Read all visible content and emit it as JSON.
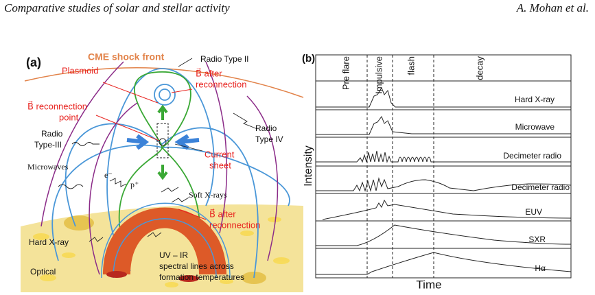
{
  "header": {
    "title": "Comparative studies of solar and stellar activity",
    "authors": "A. Mohan et al."
  },
  "panel_a": {
    "label": "(a)",
    "cme": "CME shock front",
    "radio_type_ii": "Radio Type II",
    "plasmoid": "Plasmoid",
    "b_after_top": [
      "B⃗ after",
      "reconnection"
    ],
    "reconnection_point": [
      "B⃗ reconnection",
      "point"
    ],
    "radio_type_iii": [
      "Radio",
      "Type-III"
    ],
    "radio_type_iv": [
      "Radio",
      "Type IV"
    ],
    "current_sheet": [
      "Current",
      "sheet"
    ],
    "electron": "e⁻",
    "proton": "p⁺",
    "microwaves": "Microwaves",
    "soft_xrays": "Soft X-rays",
    "b_after_bottom": [
      "B⃗ after",
      "reconnection"
    ],
    "hard_xray": "Hard X-ray",
    "optical": "Optical",
    "uv_ir": [
      "UV – IR",
      "spectral lines across",
      "formation temperatures"
    ]
  },
  "panel_b": {
    "label": "(b)",
    "phases": [
      "Pre flare",
      "Impulsive",
      "flash",
      "decay"
    ],
    "y_label": "Intensity",
    "x_label": "Time",
    "rows": [
      "Hard X-ray",
      "Microwave",
      "Decimeter radio",
      "Decimeter radio",
      "EUV",
      "SXR",
      "Hα"
    ]
  }
}
